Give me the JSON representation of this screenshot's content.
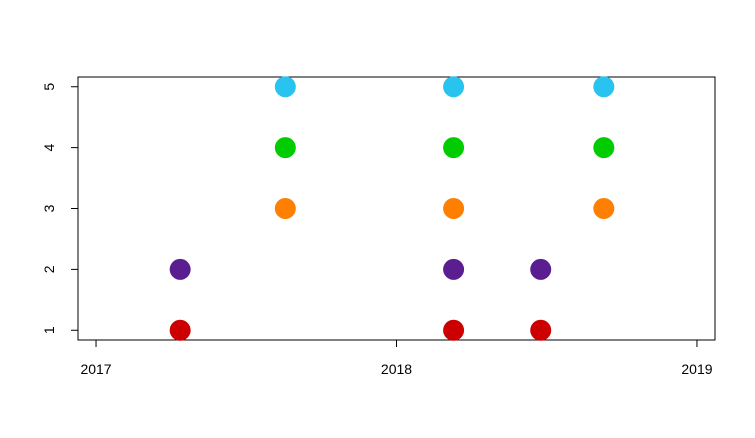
{
  "chart_data": {
    "type": "scatter",
    "title": "",
    "xlabel": "",
    "ylabel": "",
    "x_ticks": [
      "2017",
      "2018",
      "2019"
    ],
    "x_tick_values": [
      2017,
      2018,
      2019
    ],
    "y_ticks": [
      "1",
      "2",
      "3",
      "4",
      "5"
    ],
    "y_tick_values": [
      1,
      2,
      3,
      4,
      5
    ],
    "xlim": [
      2016.94,
      2019.06
    ],
    "ylim": [
      0.84,
      5.16
    ],
    "grid": false,
    "legend": "none",
    "colors": {
      "1": "#cc0000",
      "2": "#5a1e91",
      "3": "#ff7f00",
      "4": "#00cc00",
      "5": "#29c3ef"
    },
    "points": [
      {
        "x": 2017.28,
        "y": 1
      },
      {
        "x": 2017.28,
        "y": 2
      },
      {
        "x": 2017.63,
        "y": 3
      },
      {
        "x": 2017.63,
        "y": 4
      },
      {
        "x": 2017.63,
        "y": 5
      },
      {
        "x": 2018.19,
        "y": 1
      },
      {
        "x": 2018.19,
        "y": 2
      },
      {
        "x": 2018.19,
        "y": 3
      },
      {
        "x": 2018.19,
        "y": 4
      },
      {
        "x": 2018.19,
        "y": 5
      },
      {
        "x": 2018.48,
        "y": 1
      },
      {
        "x": 2018.48,
        "y": 2
      },
      {
        "x": 2018.69,
        "y": 3
      },
      {
        "x": 2018.69,
        "y": 4
      },
      {
        "x": 2018.69,
        "y": 5
      }
    ]
  }
}
